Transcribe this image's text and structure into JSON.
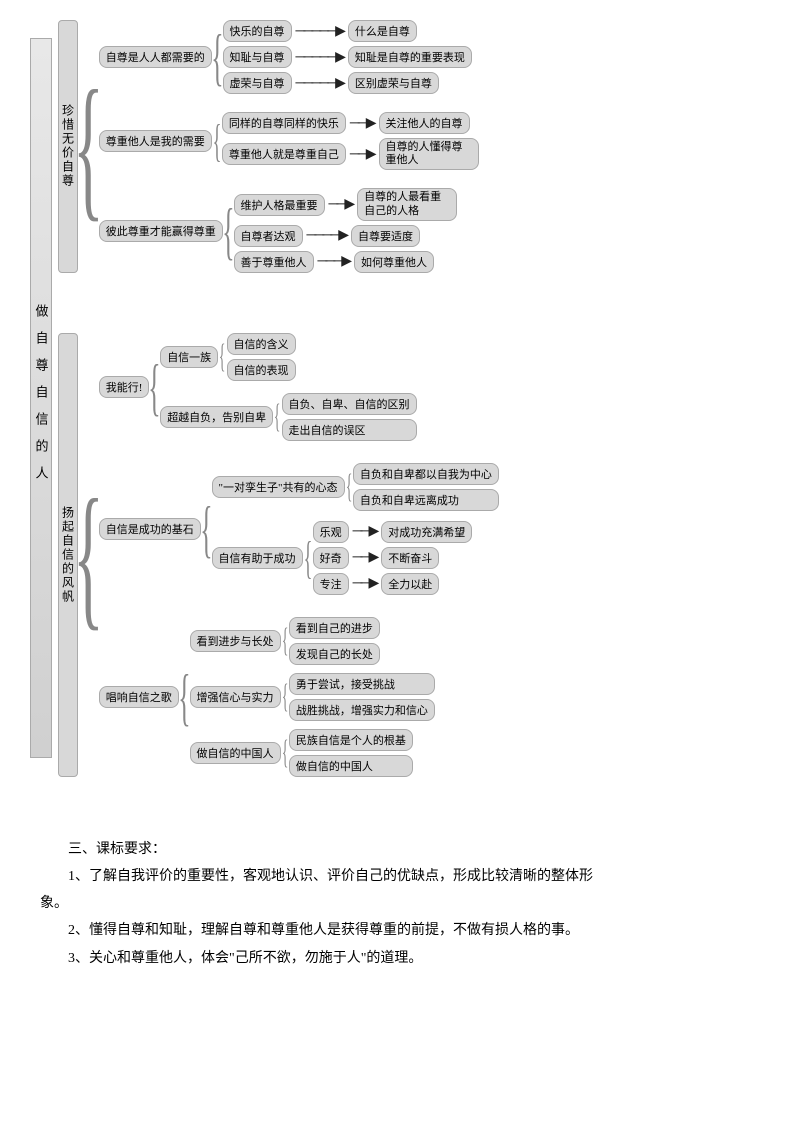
{
  "root": "做自尊自信的人",
  "section1": {
    "title": "珍惜无价自尊",
    "g1": {
      "title": "自尊是人人都需要的",
      "r1a": "快乐的自尊",
      "r1b": "什么是自尊",
      "r2a": "知耻与自尊",
      "r2b": "知耻是自尊的重要表现",
      "r3a": "虚荣与自尊",
      "r3b": "区别虚荣与自尊"
    },
    "g2": {
      "title": "尊重他人是我的需要",
      "r1a": "同样的自尊同样的快乐",
      "r1b": "关注他人的自尊",
      "r2a": "尊重他人就是尊重自己",
      "r2b": "自尊的人懂得尊重他人"
    },
    "g3": {
      "title": "彼此尊重才能赢得尊重",
      "r1a": "维护人格最重要",
      "r1b": "自尊的人最看重自己的人格",
      "r2a": "自尊者达观",
      "r2b": "自尊要适度",
      "r3a": "善于尊重他人",
      "r3b": "如何尊重他人"
    }
  },
  "section2": {
    "title": "扬起自信的风帆",
    "g1": {
      "title": "我能行!",
      "sub1": "自信一族",
      "sub1a": "自信的含义",
      "sub1b": "自信的表现",
      "sub2": "超越自负，告别自卑",
      "sub2a": "自负、自卑、自信的区别",
      "sub2b": "走出自信的误区"
    },
    "g2": {
      "title": "自信是成功的基石",
      "sub1": "\"一对孪生子\"共有的心态",
      "sub1a": "自负和自卑都以自我为中心",
      "sub1b": "自负和自卑远离成功",
      "sub2": "自信有助于成功",
      "s2r1a": "乐观",
      "s2r1b": "对成功充满希望",
      "s2r2a": "好奇",
      "s2r2b": "不断奋斗",
      "s2r3a": "专注",
      "s2r3b": "全力以赴"
    },
    "g3": {
      "title": "唱响自信之歌",
      "sub1": "看到进步与长处",
      "sub1a": "看到自己的进步",
      "sub1b": "发现自己的长处",
      "sub2": "增强信心与实力",
      "sub2a": "勇于尝试，接受挑战",
      "sub2b": "战胜挑战，增强实力和信心",
      "sub3": "做自信的中国人",
      "sub3a": "民族自信是个人的根基",
      "sub3b": "做自信的中国人"
    }
  },
  "footer": {
    "heading": "三、课标要求：",
    "p1": "1、了解自我评价的重要性，客观地认识、评价自己的优缺点，形成比较清晰的整体形",
    "p1b": "象。",
    "p2": "2、懂得自尊和知耻，理解自尊和尊重他人是获得尊重的前提，不做有损人格的事。",
    "p3": "3、关心和尊重他人，体会\"己所不欲，勿施于人\"的道理。"
  },
  "style": {
    "nodeBg": "#d8d8d8",
    "nodeBorder": "#aaaaaa",
    "textColor": "#000000",
    "pageBg": "#ffffff"
  }
}
